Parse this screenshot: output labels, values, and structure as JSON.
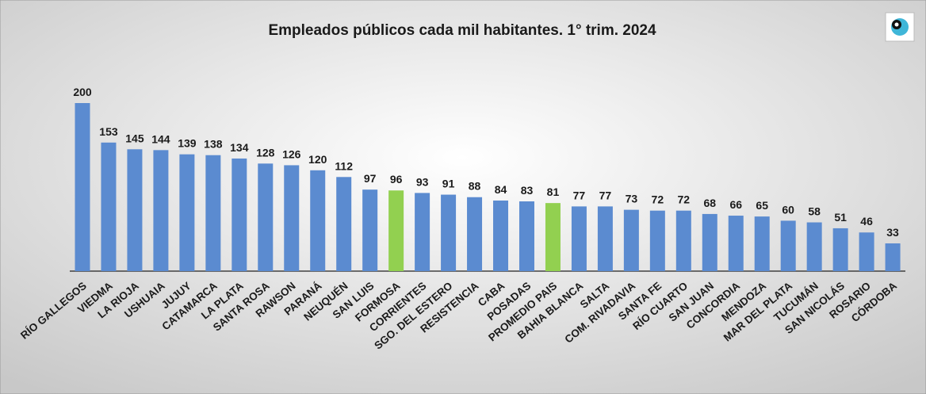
{
  "chart_data": {
    "type": "bar",
    "title": "Empleados públicos cada mil habitantes. 1° trim. 2024",
    "categories": [
      "RÍO GALLEGOS",
      "VIEDMA",
      "LA RIOJA",
      "USHUAIA",
      "JUJUY",
      "CATAMARCA",
      "LA PLATA",
      "SANTA ROSA",
      "RAWSON",
      "PARANÁ",
      "NEUQUÉN",
      "SAN LUIS",
      "FORMOSA",
      "CORRIENTES",
      "SGO. DEL ESTERO",
      "RESISTENCIA",
      "CABA",
      "POSADAS",
      "PROMEDIO PAIS",
      "BAHIA BLANCA",
      "SALTA",
      "COM. RIVADAVIA",
      "SANTA FE",
      "RÍO CUARTO",
      "SAN JUAN",
      "CONCORDIA",
      "MENDOZA",
      "MAR DEL PLATA",
      "TUCUMÁN",
      "SAN NICOLÁS",
      "ROSARIO",
      "CÓRDOBA"
    ],
    "values": [
      200,
      153,
      145,
      144,
      139,
      138,
      134,
      128,
      126,
      120,
      112,
      97,
      96,
      93,
      91,
      88,
      84,
      83,
      81,
      77,
      77,
      73,
      72,
      72,
      68,
      66,
      65,
      60,
      58,
      51,
      46,
      33
    ],
    "colors": [
      "#5b8bd0",
      "#5b8bd0",
      "#5b8bd0",
      "#5b8bd0",
      "#5b8bd0",
      "#5b8bd0",
      "#5b8bd0",
      "#5b8bd0",
      "#5b8bd0",
      "#5b8bd0",
      "#5b8bd0",
      "#5b8bd0",
      "#92d050",
      "#5b8bd0",
      "#5b8bd0",
      "#5b8bd0",
      "#5b8bd0",
      "#5b8bd0",
      "#92d050",
      "#5b8bd0",
      "#5b8bd0",
      "#5b8bd0",
      "#5b8bd0",
      "#5b8bd0",
      "#5b8bd0",
      "#5b8bd0",
      "#5b8bd0",
      "#5b8bd0",
      "#5b8bd0",
      "#5b8bd0",
      "#5b8bd0",
      "#5b8bd0"
    ]
  }
}
